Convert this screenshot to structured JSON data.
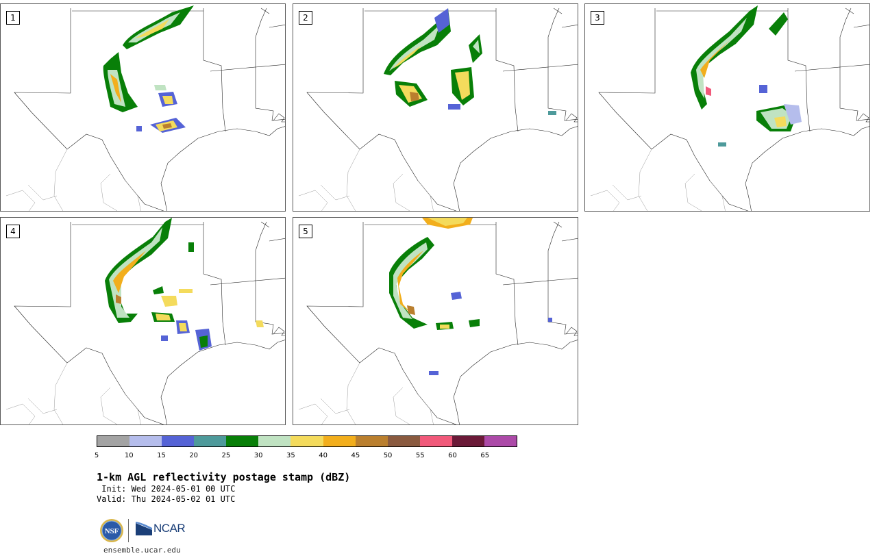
{
  "panels": [
    {
      "label": "1"
    },
    {
      "label": "2"
    },
    {
      "label": "3"
    },
    {
      "label": "4"
    },
    {
      "label": "5"
    }
  ],
  "colorbar": {
    "ticks": [
      "5",
      "10",
      "15",
      "20",
      "25",
      "30",
      "35",
      "40",
      "45",
      "50",
      "55",
      "60",
      "65"
    ],
    "colors": [
      "#a3a3a3",
      "#b5bdec",
      "#5563d6",
      "#4e9a9b",
      "#087f08",
      "#c0e3c2",
      "#f4db5c",
      "#f2ae1c",
      "#ba7f2e",
      "#8a5a3f",
      "#f1597a",
      "#6b1a38",
      "#ac4aa8"
    ]
  },
  "title": "1-km AGL reflectivity postage stamp (dBZ)",
  "init": " Init: Wed 2024-05-01 00 UTC",
  "valid": "Valid: Thu 2024-05-02 01 UTC",
  "logos": {
    "nsf": "NSF",
    "ncar": "NCAR"
  },
  "site": "ensemble.ucar.edu"
}
